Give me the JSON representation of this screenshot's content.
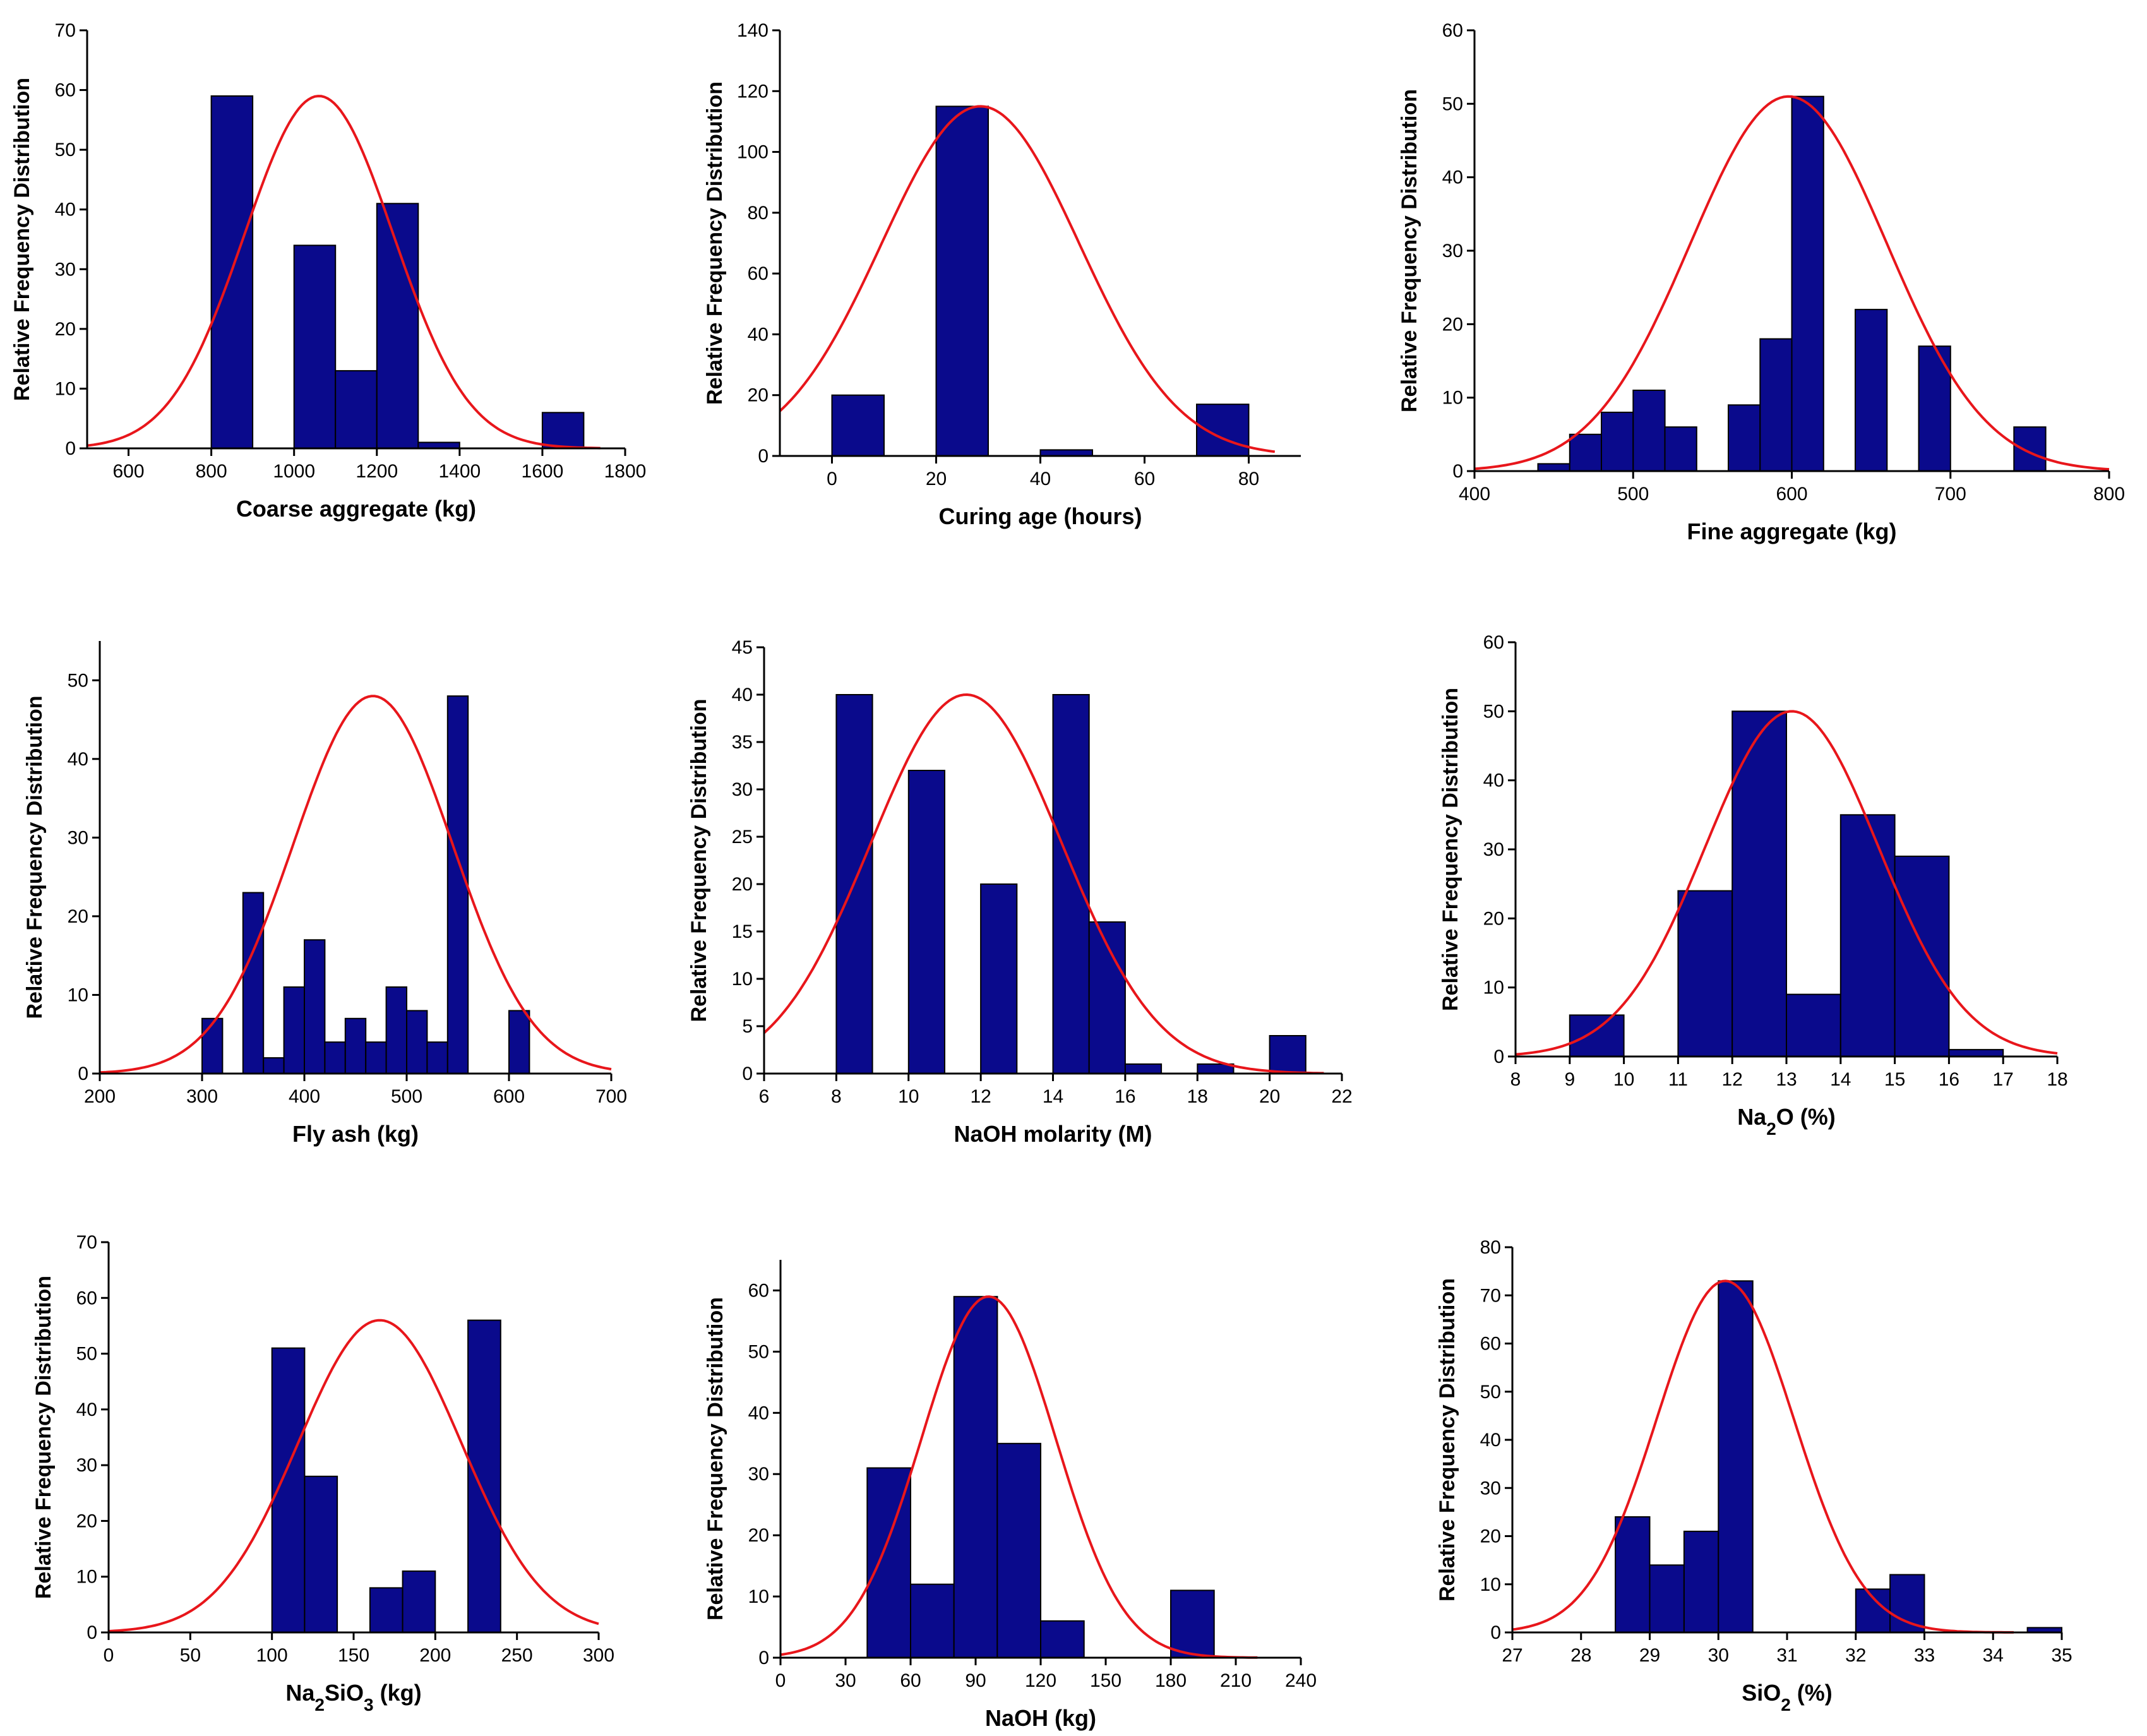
{
  "colors": {
    "bar_fill": "#0a0a8c",
    "bar_stroke": "#000000",
    "curve": "#e8161b",
    "axis": "#000000"
  },
  "y_axis_title": "Relative Frequency Distribution",
  "chart_data": [
    {
      "type": "bar",
      "name": "coarse-aggregate",
      "title": "",
      "xlabel": "Coarse aggregate (kg)",
      "ylabel": "Relative Frequency Distribution",
      "xlim": [
        500,
        1800
      ],
      "ylim": [
        0,
        70
      ],
      "xticks": [
        600,
        800,
        1000,
        1200,
        1400,
        1600,
        1800
      ],
      "yticks": [
        0,
        10,
        20,
        30,
        40,
        50,
        60,
        70
      ],
      "bins": [
        {
          "start": 800,
          "end": 900,
          "value": 59
        },
        {
          "start": 1000,
          "end": 1100,
          "value": 34
        },
        {
          "start": 1100,
          "end": 1200,
          "value": 13
        },
        {
          "start": 1200,
          "end": 1300,
          "value": 41
        },
        {
          "start": 1300,
          "end": 1400,
          "value": 1
        },
        {
          "start": 1600,
          "end": 1700,
          "value": 6
        }
      ],
      "fit": {
        "mean": 1060,
        "sd": 180,
        "peak": 59,
        "x_range": [
          500,
          1740
        ]
      }
    },
    {
      "type": "bar",
      "name": "curing-age",
      "title": "",
      "xlabel": "Curing age (hours)",
      "ylabel": "Relative Frequency Distribution",
      "xlim": [
        -10,
        90
      ],
      "ylim": [
        0,
        140
      ],
      "xticks": [
        0,
        20,
        40,
        60,
        80
      ],
      "yticks": [
        0,
        20,
        40,
        60,
        80,
        100,
        120,
        140
      ],
      "bins": [
        {
          "start": 0,
          "end": 10,
          "value": 20
        },
        {
          "start": 20,
          "end": 30,
          "value": 115
        },
        {
          "start": 40,
          "end": 50,
          "value": 2
        },
        {
          "start": 70,
          "end": 80,
          "value": 17
        }
      ],
      "fit": {
        "mean": 28.5,
        "sd": 19,
        "peak": 115,
        "x_range": [
          -10,
          85
        ]
      }
    },
    {
      "type": "bar",
      "name": "fine-aggregate",
      "title": "",
      "xlabel": "Fine aggregate (kg)",
      "ylabel": "Relative Frequency Distribution",
      "xlim": [
        400,
        800
      ],
      "ylim": [
        0,
        60
      ],
      "xticks": [
        400,
        500,
        600,
        700,
        800
      ],
      "yticks": [
        0,
        10,
        20,
        30,
        40,
        50,
        60
      ],
      "bins": [
        {
          "start": 440,
          "end": 460,
          "value": 1
        },
        {
          "start": 460,
          "end": 480,
          "value": 5
        },
        {
          "start": 480,
          "end": 500,
          "value": 8
        },
        {
          "start": 500,
          "end": 520,
          "value": 11
        },
        {
          "start": 520,
          "end": 540,
          "value": 6
        },
        {
          "start": 560,
          "end": 580,
          "value": 9
        },
        {
          "start": 580,
          "end": 600,
          "value": 18
        },
        {
          "start": 600,
          "end": 620,
          "value": 51
        },
        {
          "start": 640,
          "end": 660,
          "value": 22
        },
        {
          "start": 680,
          "end": 700,
          "value": 17
        },
        {
          "start": 740,
          "end": 760,
          "value": 6
        }
      ],
      "fit": {
        "mean": 598,
        "sd": 62,
        "peak": 51,
        "x_range": [
          400,
          800
        ]
      }
    },
    {
      "type": "bar",
      "name": "fly-ash",
      "title": "",
      "xlabel": "Fly ash (kg)",
      "ylabel": "Relative Frequency Distribution",
      "xlim": [
        200,
        700
      ],
      "ylim": [
        0,
        55
      ],
      "xticks": [
        200,
        300,
        400,
        500,
        600,
        700
      ],
      "yticks": [
        0,
        10,
        20,
        30,
        40,
        50
      ],
      "bins": [
        {
          "start": 300,
          "end": 320,
          "value": 7
        },
        {
          "start": 340,
          "end": 360,
          "value": 23
        },
        {
          "start": 360,
          "end": 380,
          "value": 2
        },
        {
          "start": 380,
          "end": 400,
          "value": 11
        },
        {
          "start": 400,
          "end": 420,
          "value": 17
        },
        {
          "start": 420,
          "end": 440,
          "value": 4
        },
        {
          "start": 440,
          "end": 460,
          "value": 7
        },
        {
          "start": 460,
          "end": 480,
          "value": 4
        },
        {
          "start": 480,
          "end": 500,
          "value": 11
        },
        {
          "start": 500,
          "end": 520,
          "value": 8
        },
        {
          "start": 520,
          "end": 540,
          "value": 4
        },
        {
          "start": 540,
          "end": 560,
          "value": 48
        },
        {
          "start": 600,
          "end": 620,
          "value": 8
        }
      ],
      "fit": {
        "mean": 467,
        "sd": 78,
        "peak": 48,
        "x_range": [
          200,
          700
        ]
      }
    },
    {
      "type": "bar",
      "name": "naoh-molarity",
      "title": "",
      "xlabel": "NaOH molarity (M)",
      "ylabel": "Relative Frequency Distribution",
      "xlim": [
        6,
        22
      ],
      "ylim": [
        0,
        45
      ],
      "xticks": [
        6,
        8,
        10,
        12,
        14,
        16,
        18,
        20,
        22
      ],
      "yticks": [
        0,
        5,
        10,
        15,
        20,
        25,
        30,
        35,
        40,
        45
      ],
      "bins": [
        {
          "start": 8,
          "end": 9,
          "value": 40
        },
        {
          "start": 10,
          "end": 11,
          "value": 32
        },
        {
          "start": 12,
          "end": 13,
          "value": 20
        },
        {
          "start": 14,
          "end": 15,
          "value": 40
        },
        {
          "start": 15,
          "end": 16,
          "value": 16
        },
        {
          "start": 16,
          "end": 17,
          "value": 1
        },
        {
          "start": 18,
          "end": 19,
          "value": 1
        },
        {
          "start": 20,
          "end": 21,
          "value": 4
        }
      ],
      "fit": {
        "mean": 11.6,
        "sd": 2.65,
        "peak": 40,
        "x_range": [
          6,
          21.5
        ]
      }
    },
    {
      "type": "bar",
      "name": "na2o",
      "title": "",
      "xlabel": "Na2O (%)",
      "xlabel_parts": [
        "Na",
        "2",
        "O (%)"
      ],
      "ylabel": "Relative Frequency Distribution",
      "xlim": [
        8,
        18
      ],
      "ylim": [
        0,
        60
      ],
      "xticks": [
        8,
        9,
        10,
        11,
        12,
        13,
        14,
        15,
        16,
        17,
        18
      ],
      "yticks": [
        0,
        10,
        20,
        30,
        40,
        50,
        60
      ],
      "bins": [
        {
          "start": 9,
          "end": 10,
          "value": 6
        },
        {
          "start": 11,
          "end": 12,
          "value": 24
        },
        {
          "start": 12,
          "end": 13,
          "value": 50
        },
        {
          "start": 13,
          "end": 14,
          "value": 9
        },
        {
          "start": 14,
          "end": 15,
          "value": 35
        },
        {
          "start": 15,
          "end": 16,
          "value": 29
        },
        {
          "start": 16,
          "end": 17,
          "value": 1
        }
      ],
      "fit": {
        "mean": 13.1,
        "sd": 1.6,
        "peak": 50,
        "x_range": [
          8,
          18
        ]
      }
    },
    {
      "type": "bar",
      "name": "na2sio3",
      "title": "",
      "xlabel": "Na2SiO3 (kg)",
      "xlabel_parts": [
        "Na",
        "2",
        "SiO",
        "3",
        " (kg)"
      ],
      "ylabel": "Relative Frequency Distribution",
      "xlim": [
        0,
        300
      ],
      "ylim": [
        0,
        70
      ],
      "xticks": [
        0,
        50,
        100,
        150,
        200,
        250,
        300
      ],
      "yticks": [
        0,
        10,
        20,
        30,
        40,
        50,
        60,
        70
      ],
      "bins": [
        {
          "start": 100,
          "end": 120,
          "value": 51
        },
        {
          "start": 120,
          "end": 140,
          "value": 28
        },
        {
          "start": 160,
          "end": 180,
          "value": 8
        },
        {
          "start": 180,
          "end": 200,
          "value": 11
        },
        {
          "start": 220,
          "end": 240,
          "value": 56
        }
      ],
      "fit": {
        "mean": 166,
        "sd": 50,
        "peak": 56,
        "x_range": [
          0,
          300
        ]
      }
    },
    {
      "type": "bar",
      "name": "naoh-kg",
      "title": "",
      "xlabel": "NaOH (kg)",
      "ylabel": "Relative Frequency Distribution",
      "xlim": [
        0,
        240
      ],
      "ylim": [
        0,
        65
      ],
      "xticks": [
        0,
        30,
        60,
        90,
        120,
        150,
        180,
        210,
        240
      ],
      "yticks": [
        0,
        10,
        20,
        30,
        40,
        50,
        60
      ],
      "bins": [
        {
          "start": 40,
          "end": 60,
          "value": 31
        },
        {
          "start": 60,
          "end": 80,
          "value": 12
        },
        {
          "start": 80,
          "end": 100,
          "value": 59
        },
        {
          "start": 100,
          "end": 120,
          "value": 35
        },
        {
          "start": 120,
          "end": 140,
          "value": 6
        },
        {
          "start": 180,
          "end": 200,
          "value": 11
        }
      ],
      "fit": {
        "mean": 96,
        "sd": 31,
        "peak": 59,
        "x_range": [
          0,
          220
        ]
      }
    },
    {
      "type": "bar",
      "name": "sio2",
      "title": "",
      "xlabel": "SiO2 (%)",
      "xlabel_parts": [
        "SiO",
        "2",
        " (%)"
      ],
      "ylabel": "Relative Frequency Distribution",
      "xlim": [
        27,
        35
      ],
      "ylim": [
        0,
        80
      ],
      "xticks": [
        27,
        28,
        29,
        30,
        31,
        32,
        33,
        34,
        35
      ],
      "yticks": [
        0,
        10,
        20,
        30,
        40,
        50,
        60,
        70,
        80
      ],
      "bins": [
        {
          "start": 28.5,
          "end": 29,
          "value": 24
        },
        {
          "start": 29,
          "end": 29.5,
          "value": 14
        },
        {
          "start": 29.5,
          "end": 30,
          "value": 21
        },
        {
          "start": 30,
          "end": 30.5,
          "value": 73
        },
        {
          "start": 32,
          "end": 32.5,
          "value": 9
        },
        {
          "start": 32.5,
          "end": 33,
          "value": 12
        },
        {
          "start": 34.5,
          "end": 35,
          "value": 1
        }
      ],
      "fit": {
        "mean": 30.1,
        "sd": 1.0,
        "peak": 73,
        "x_range": [
          27,
          34.3
        ]
      }
    }
  ]
}
